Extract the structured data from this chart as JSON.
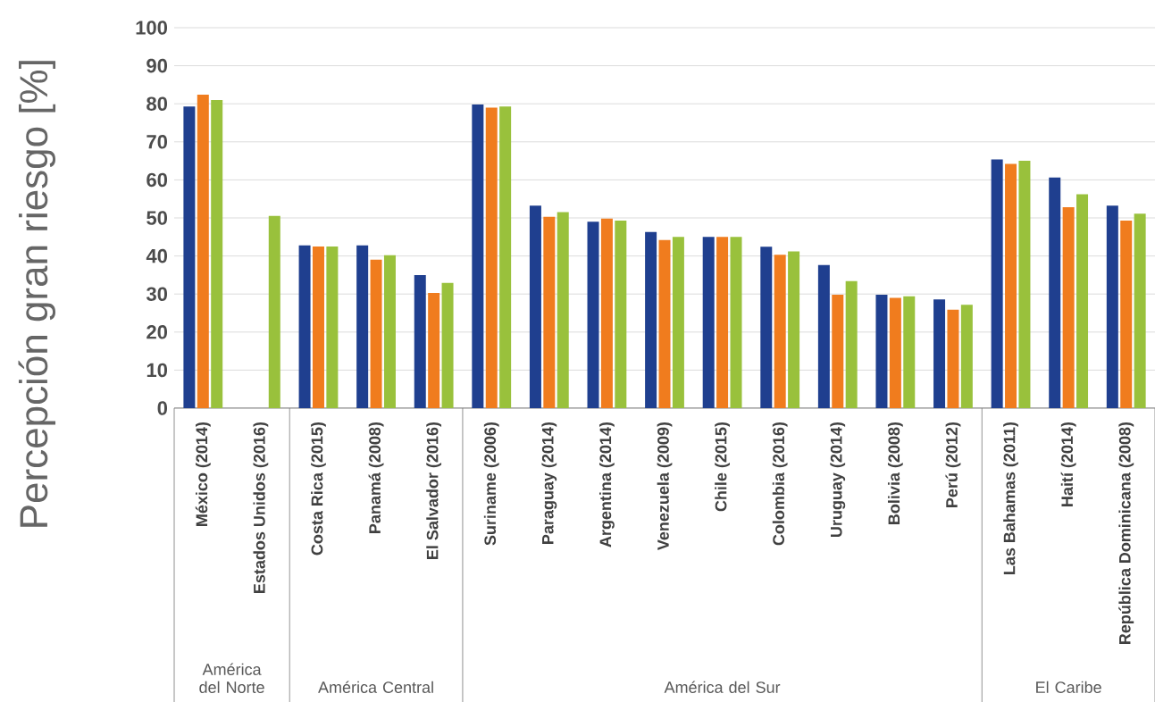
{
  "chart_data": {
    "type": "bar",
    "ylabel": "Percepción gran riesgo [%]",
    "categories": [
      "México (2014)",
      "Estados Unidos (2016)",
      "Costa Rica (2015)",
      "Panamá (2008)",
      "El Salvador (2016)",
      "Suriname (2006)",
      "Paraguay (2014)",
      "Argentina (2014)",
      "Venezuela (2009)",
      "Chile (2015)",
      "Colombia (2016)",
      "Uruguay (2014)",
      "Bolivia (2008)",
      "Perú (2012)",
      "Las Bahamas (2011)",
      "Haití (2014)",
      "República Dominicana (2008)"
    ],
    "series": [
      {
        "color": "#1f3f8f",
        "values": [
          79.3,
          null,
          42.8,
          42.8,
          35.0,
          79.8,
          53.2,
          49.0,
          46.3,
          45.0,
          42.4,
          37.6,
          29.8,
          28.6,
          65.4,
          60.6,
          53.2
        ]
      },
      {
        "color": "#f07c1e",
        "values": [
          82.4,
          null,
          42.5,
          39.0,
          30.3,
          79.0,
          50.3,
          49.8,
          44.2,
          45.0,
          40.3,
          29.8,
          29.0,
          25.9,
          64.2,
          52.8,
          49.3
        ]
      },
      {
        "color": "#99c13c",
        "values": [
          81.0,
          50.5,
          42.5,
          40.2,
          32.9,
          79.3,
          51.5,
          49.3,
          45.0,
          45.0,
          41.2,
          33.4,
          29.4,
          27.2,
          65.0,
          56.2,
          51.1
        ]
      }
    ],
    "annotations": [
      "América del Norte",
      "América Central",
      "América del Sur",
      "El Caribe"
    ],
    "ylim": [
      0,
      100
    ],
    "yticks": [
      0,
      10,
      20,
      30,
      40,
      50,
      60,
      70,
      80,
      90,
      100
    ],
    "grid": "y"
  }
}
